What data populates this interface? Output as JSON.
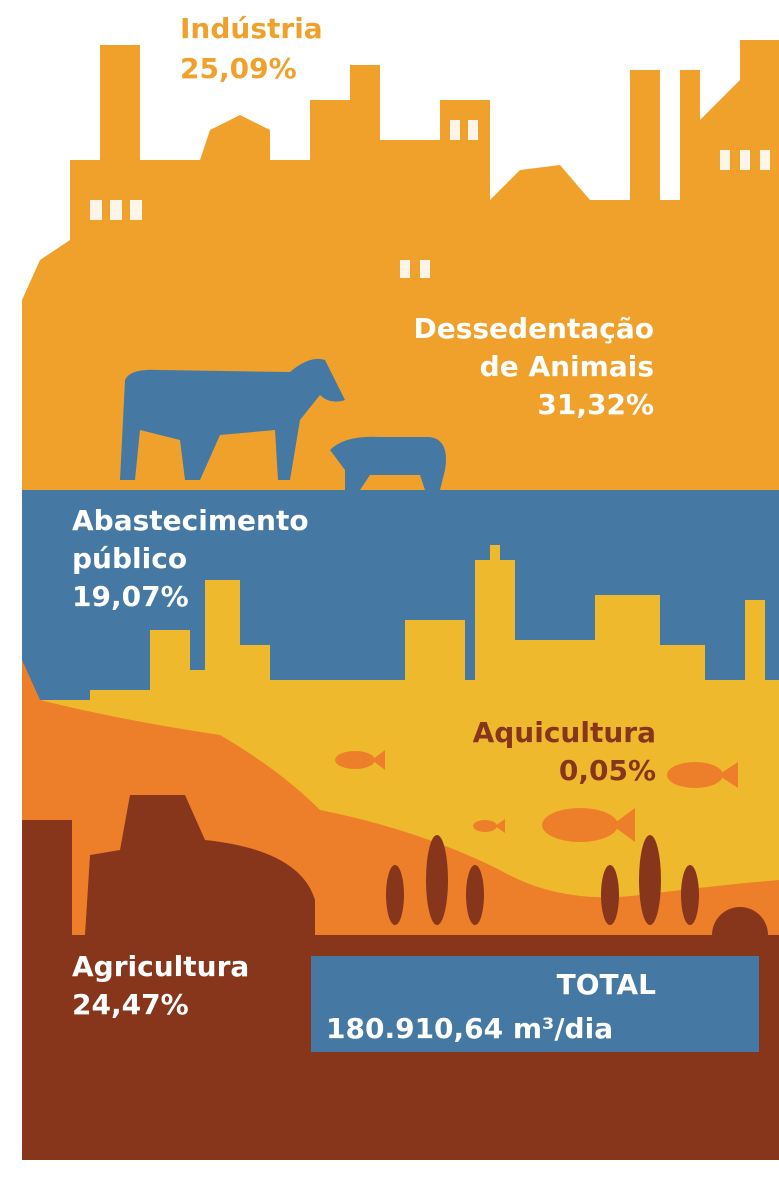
{
  "sections": [
    {
      "lines": [
        "Indústria"
      ],
      "value": "25,09%"
    },
    {
      "lines": [
        "Dessedentação",
        "de Animais"
      ],
      "value": "31,32%"
    },
    {
      "lines": [
        "Abastecimento",
        "público"
      ],
      "value": "19,07%"
    },
    {
      "lines": [
        "Aquicultura"
      ],
      "value": "0,05%"
    },
    {
      "lines": [
        "Agricultura"
      ],
      "value": "24,47%"
    }
  ],
  "total": {
    "label": "TOTAL",
    "value": "180.910,64 m³/dia"
  }
}
